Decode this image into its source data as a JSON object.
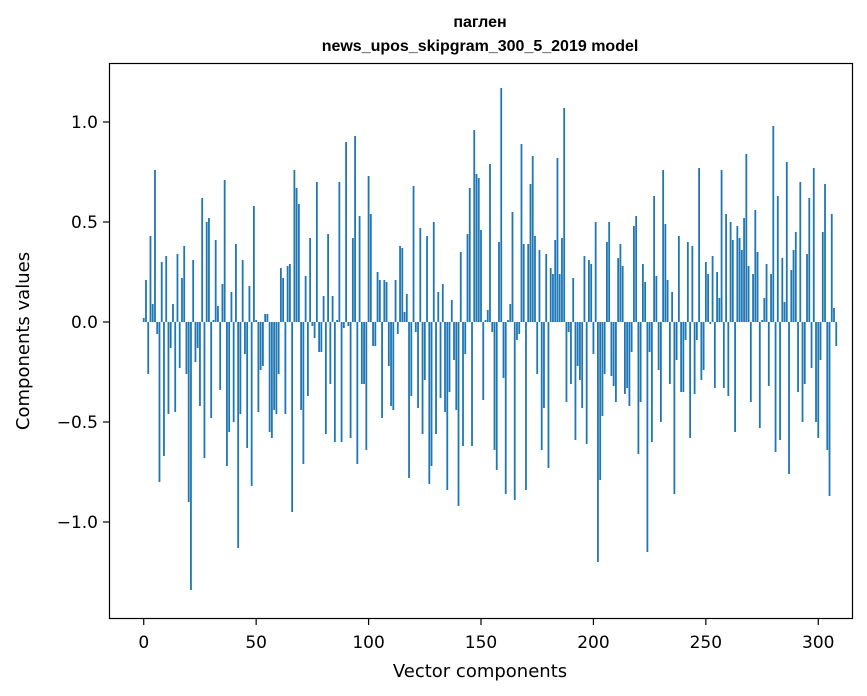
{
  "chart_data": {
    "type": "bar",
    "title": "паглен",
    "subtitle": "news_upos_skipgram_300_5_2019 model",
    "xlabel": "Vector components",
    "ylabel": "Components values",
    "xlim": [
      -15,
      315
    ],
    "ylim": [
      -1.48,
      1.29
    ],
    "x_ticks": [
      0,
      50,
      100,
      150,
      200,
      250,
      300
    ],
    "x_tick_labels": [
      "0",
      "50",
      "100",
      "150",
      "200",
      "250",
      "300"
    ],
    "y_ticks": [
      -1.0,
      -0.5,
      0.0,
      0.5,
      1.0
    ],
    "y_tick_labels": [
      "−1.0",
      "−0.5",
      "0.0",
      "0.5",
      "1.0"
    ],
    "bar_color": "#1f77b4",
    "grid": false,
    "values": [
      0.02,
      0.21,
      -0.26,
      0.43,
      0.09,
      0.76,
      -0.06,
      -0.8,
      0.3,
      -0.67,
      0.33,
      -0.46,
      -0.13,
      0.09,
      -0.45,
      0.34,
      -0.23,
      0.22,
      0.38,
      -0.26,
      -0.9,
      -1.34,
      0.31,
      -0.2,
      -0.13,
      -0.42,
      0.62,
      -0.68,
      0.5,
      0.52,
      -0.48,
      0.01,
      0.41,
      0.08,
      -0.34,
      0.19,
      0.71,
      -0.72,
      -0.55,
      0.15,
      -0.5,
      0.39,
      -1.13,
      -0.46,
      0.31,
      -0.16,
      -0.63,
      0.18,
      -0.82,
      0.58,
      0.01,
      -0.45,
      -0.24,
      -0.22,
      0.04,
      0.04,
      -0.55,
      -0.58,
      -0.44,
      -0.46,
      -0.26,
      0.27,
      0.22,
      -0.46,
      0.28,
      0.29,
      -0.95,
      0.76,
      0.67,
      0.59,
      -0.44,
      -0.71,
      0.23,
      -0.37,
      0.42,
      -0.02,
      -0.08,
      0.7,
      -0.15,
      -0.15,
      0.13,
      -0.56,
      0.44,
      -0.31,
      0.13,
      -0.6,
      0.01,
      0.7,
      -0.6,
      -0.03,
      0.9,
      -0.02,
      -0.58,
      0.42,
      0.93,
      -0.71,
      0.53,
      -0.31,
      -0.31,
      -0.64,
      0.73,
      0.54,
      -0.12,
      -0.12,
      0.25,
      0.21,
      -0.48,
      0.21,
      0.2,
      -0.22,
      -0.42,
      -0.44,
      0.21,
      -0.06,
      0.38,
      0.37,
      0.05,
      0.14,
      -0.78,
      -0.37,
      0.68,
      -0.05,
      -0.43,
      0.47,
      -0.56,
      -0.29,
      0.43,
      -0.81,
      -0.72,
      0.5,
      -0.56,
      0.15,
      -0.38,
      0.19,
      -0.45,
      -0.84,
      -0.35,
      0.11,
      -0.19,
      -0.44,
      -0.92,
      0.35,
      -0.62,
      -0.16,
      0.44,
      0.67,
      -0.62,
      0.96,
      0.74,
      0.72,
      0.46,
      -0.39,
      0.01,
      0.06,
      0.79,
      -0.05,
      -0.64,
      -0.74,
      0.4,
      1.17,
      -0.28,
      -0.86,
      0.01,
      0.09,
      0.55,
      -0.89,
      -0.09,
      -0.06,
      0.89,
      0.39,
      -0.84,
      0.39,
      0.69,
      0.83,
      0.43,
      -0.26,
      0.36,
      -0.64,
      -0.43,
      0.34,
      -0.73,
      0.27,
      0.24,
      0.41,
      0.82,
      0.24,
      0.42,
      1.07,
      -0.4,
      -0.05,
      -0.31,
      0.22,
      -0.59,
      -0.22,
      -0.29,
      -0.43,
      0.33,
      -0.61,
      0.31,
      0.29,
      -0.16,
      0.5,
      -1.2,
      -0.79,
      -0.47,
      -0.26,
      0.4,
      0.5,
      -0.27,
      -0.32,
      -0.4,
      0.32,
      0.39,
      0.28,
      -0.36,
      -0.33,
      -0.42,
      -0.15,
      0.48,
      0.53,
      -0.66,
      -0.4,
      0.29,
      0.2,
      -1.15,
      -0.15,
      -0.6,
      0.63,
      0.23,
      -0.24,
      -0.5,
      0.76,
      0.49,
      0.21,
      -0.31,
      0.15,
      -0.86,
      -0.19,
      0.43,
      -0.35,
      -0.35,
      -0.09,
      0.4,
      -0.58,
      0.38,
      -0.36,
      -0.09,
      0.77,
      -0.29,
      -0.24,
      0.3,
      0.24,
      -0.01,
      0.33,
      -0.33,
      0.25,
      0.12,
      0.76,
      -0.33,
      0.54,
      -0.37,
      0.5,
      0.41,
      -0.55,
      0.48,
      0.42,
      0.36,
      0.52,
      0.84,
      0.28,
      -0.4,
      0.24,
      0.56,
      0.35,
      -0.53,
      0.01,
      0.12,
      0.29,
      -0.32,
      0.24,
      0.98,
      -0.65,
      0.63,
      -0.59,
      0.32,
      0.1,
      0.8,
      -0.76,
      0.26,
      0.36,
      0.45,
      -0.35,
      0.7,
      -0.5,
      -0.31,
      0.34,
      0.62,
      -0.23,
      0.77,
      -0.5,
      -0.58,
      -0.19,
      0.45,
      0.69,
      -0.64,
      -0.87,
      0.54,
      0.07,
      -0.12
    ]
  }
}
